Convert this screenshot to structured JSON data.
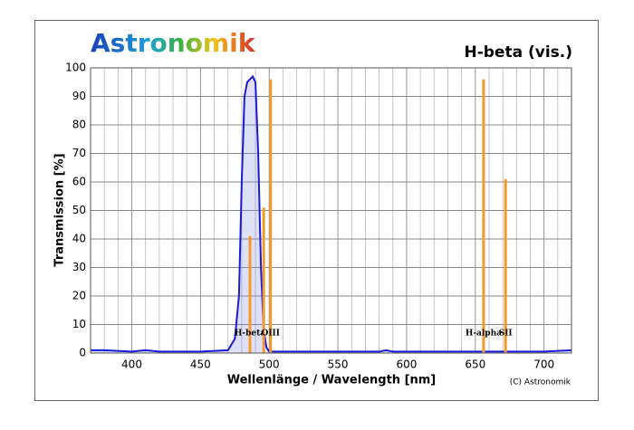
{
  "chart_data": {
    "type": "line",
    "brand": "Astronomik",
    "title": "H-beta (vis.)",
    "x_label": "Wellenlänge / Wavelength [nm]",
    "y_label": "Transmission [%]",
    "credit": "(C) Astronomik",
    "xlim": [
      370,
      720
    ],
    "ylim": [
      0,
      100
    ],
    "xticks": [
      400,
      450,
      500,
      550,
      600,
      650,
      700
    ],
    "xminorticks": [
      370,
      380,
      390,
      410,
      420,
      430,
      440,
      460,
      470,
      480,
      490,
      510,
      520,
      530,
      540,
      560,
      570,
      580,
      590,
      610,
      620,
      630,
      640,
      660,
      670,
      680,
      690,
      710,
      720
    ],
    "yticks": [
      0,
      10,
      20,
      30,
      40,
      50,
      60,
      70,
      80,
      90,
      100
    ],
    "grid": true,
    "color": "#1a1adb",
    "x": [
      370,
      380,
      400,
      410,
      420,
      450,
      470,
      475,
      478,
      480,
      482,
      484,
      486,
      488,
      490,
      492,
      494,
      496,
      498,
      500,
      550,
      580,
      585,
      590,
      650,
      700,
      720
    ],
    "values": [
      1,
      1,
      0.5,
      1,
      0.5,
      0.5,
      1,
      5,
      20,
      60,
      90,
      95,
      96,
      97,
      95,
      70,
      30,
      8,
      2,
      0.5,
      0.5,
      0.5,
      1,
      0.5,
      0.5,
      0.5,
      1
    ],
    "emission_lines": {
      "color": "#f39a2e",
      "x": [
        486,
        496,
        501,
        656,
        672
      ],
      "values": [
        41,
        51,
        96,
        96,
        61
      ],
      "labels": [
        "H-beta",
        null,
        "OIII",
        "H-alpha",
        "SII"
      ]
    }
  }
}
